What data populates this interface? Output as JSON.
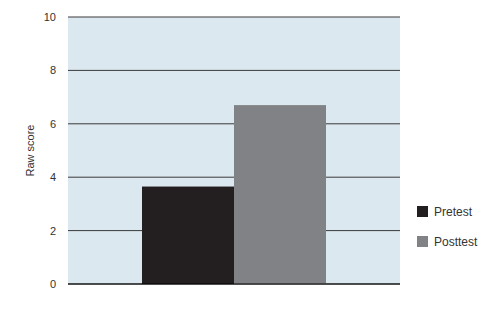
{
  "chart_data": {
    "type": "bar",
    "y_label": "Raw score",
    "categories": [
      null
    ],
    "series": [
      {
        "name": "Pretest",
        "color": "#231f20",
        "values": [
          3.65
        ]
      },
      {
        "name": "Posttest",
        "color": "#808285",
        "values": [
          6.7
        ]
      }
    ],
    "ylim": [
      0,
      10
    ],
    "yticks": [
      0,
      2,
      4,
      6,
      8,
      10
    ],
    "grid": true,
    "legend": "right"
  }
}
